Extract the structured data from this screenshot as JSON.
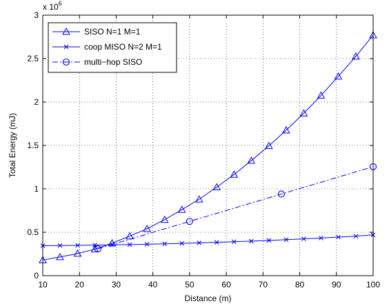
{
  "chart_data": {
    "type": "line",
    "title": "",
    "xlabel": "Distance (m)",
    "ylabel": "Total Energy (mJ)",
    "xlim": [
      10,
      100
    ],
    "ylim": [
      0,
      3000000
    ],
    "y_multiplier_label": "x 10^6",
    "x_ticks": [
      10,
      20,
      30,
      40,
      50,
      60,
      70,
      80,
      90,
      100
    ],
    "x_tick_labels": [
      "10",
      "20",
      "30",
      "40",
      "50",
      "60",
      "70",
      "80",
      "90",
      "100"
    ],
    "y_ticks": [
      0,
      500000,
      1000000,
      1500000,
      2000000,
      2500000,
      3000000
    ],
    "y_tick_labels": [
      "0",
      "0.5",
      "1",
      "1.5",
      "2",
      "2.5",
      "3"
    ],
    "grid": true,
    "legend_position": "top-left",
    "series": [
      {
        "name": "SISO N=1 M=1",
        "color": "#0000ff",
        "line_style": "solid",
        "marker": "triangle",
        "x": [
          10,
          14.7,
          19.5,
          24.2,
          28.9,
          33.7,
          38.4,
          43.2,
          47.9,
          52.6,
          57.4,
          62.1,
          66.8,
          71.6,
          76.3,
          81.1,
          85.8,
          90.5,
          95.3,
          100
        ],
        "y": [
          180000,
          215000,
          255000,
          305000,
          375000,
          455000,
          540000,
          645000,
          760000,
          880000,
          1020000,
          1165000,
          1325000,
          1495000,
          1675000,
          1870000,
          2075000,
          2295000,
          2525000,
          2770000
        ]
      },
      {
        "name": "coop MISO N=2 M=1",
        "color": "#0000ff",
        "line_style": "solid",
        "marker": "x",
        "x": [
          10,
          14.7,
          19.5,
          24.2,
          28.9,
          33.7,
          38.4,
          43.2,
          47.9,
          52.6,
          57.4,
          62.1,
          66.8,
          71.6,
          76.3,
          81.1,
          85.8,
          90.5,
          95.3,
          100
        ],
        "y": [
          345000,
          347000,
          349000,
          352000,
          355000,
          358000,
          362000,
          367000,
          372000,
          378000,
          384000,
          391000,
          398000,
          406000,
          415000,
          424000,
          434000,
          444000,
          455000,
          470000
        ]
      },
      {
        "name": "multi−hop SISO",
        "color": "#0000ff",
        "line_style": "dashdot",
        "marker": "circle",
        "x": [
          25,
          50,
          75,
          100
        ],
        "y": [
          310000,
          625000,
          940000,
          1255000
        ]
      }
    ]
  }
}
